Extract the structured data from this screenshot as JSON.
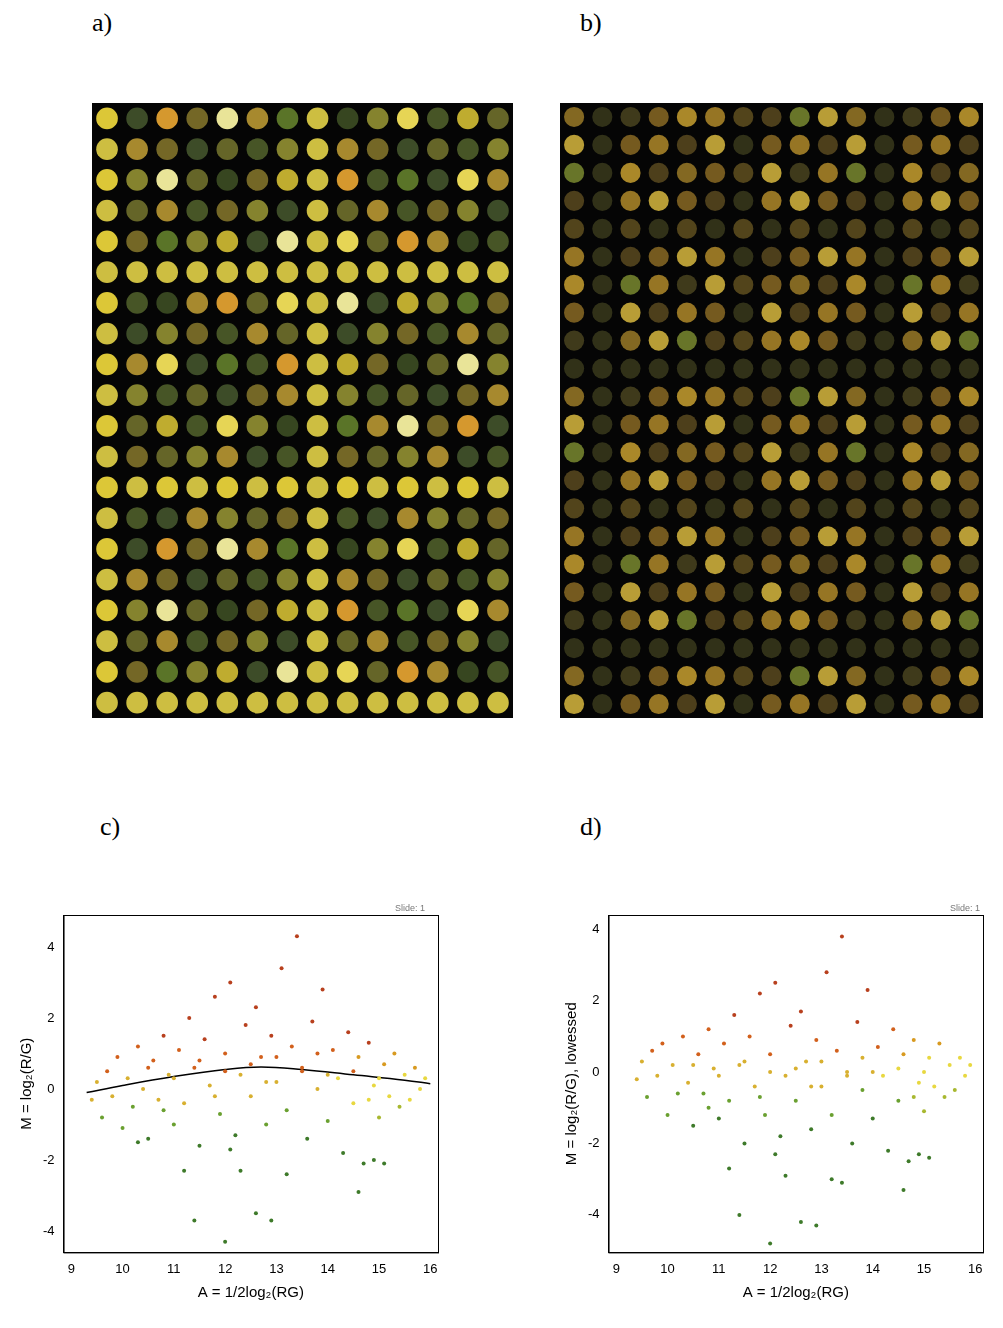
{
  "images": [
    {
      "label": "a)",
      "rows": 20,
      "cols": 14
    },
    {
      "label": "b)",
      "rows": 22,
      "cols": 15
    }
  ],
  "chart_data": [
    {
      "panel_label": "c)",
      "type": "scatter",
      "annotation": "Slide: 1",
      "x_label": "A = 1/2log₂(RG)",
      "y_label": "M = log₂(R/G)",
      "xlim": [
        8.85,
        16.15
      ],
      "xticks": [
        9,
        10,
        11,
        12,
        13,
        14,
        15,
        16
      ],
      "ylim": [
        -4.6,
        4.9
      ],
      "yticks": [
        -4,
        -2,
        0,
        2,
        4
      ],
      "grid": false,
      "points": {
        "x": [
          9.4,
          9.5,
          9.6,
          9.7,
          9.8,
          9.9,
          10,
          10.1,
          10.2,
          10.3,
          10.4,
          10.5,
          10.6,
          10.7,
          10.8,
          10.9,
          11,
          11.1,
          11.2,
          11.3,
          11.4,
          11.5,
          11.6,
          11.7,
          11.8,
          11.9,
          12,
          12.1,
          12.2,
          12.3,
          12.4,
          12.5,
          12.6,
          12.7,
          12.8,
          12.9,
          13,
          13.1,
          13.2,
          13.3,
          13.4,
          13.5,
          13.6,
          13.7,
          13.8,
          13.9,
          14,
          14.1,
          14.2,
          14.3,
          14.4,
          14.5,
          14.6,
          14.7,
          14.8,
          14.9,
          15,
          15.1,
          15.2,
          15.3,
          15.4,
          15.5,
          15.6,
          15.7,
          15.8,
          15.9,
          12,
          12.9,
          11.4,
          12.3,
          14.6,
          11.2,
          12.1,
          10.3,
          15.1,
          14.9,
          13.2,
          12.6,
          10.5,
          11,
          11.5,
          12,
          12.5,
          13,
          13.5,
          14,
          14.5,
          15,
          11.8,
          12.8,
          13.8,
          10.8,
          14.8
        ],
        "y": [
          -0.3,
          0.2,
          -0.8,
          0.5,
          -0.2,
          0.9,
          -1.1,
          0.3,
          -0.5,
          1.2,
          0,
          -1.4,
          0.8,
          -0.3,
          1.5,
          0.4,
          -1,
          1.1,
          -0.4,
          2,
          0.6,
          -1.6,
          1.4,
          0.1,
          2.6,
          -0.7,
          1,
          3,
          -1.3,
          0.4,
          1.8,
          -0.2,
          2.3,
          0.9,
          -1,
          1.5,
          0.2,
          3.4,
          -0.6,
          1.2,
          4.3,
          0.5,
          -1.4,
          1.9,
          0,
          2.8,
          -0.9,
          1.1,
          0.3,
          -1.8,
          1.6,
          -0.4,
          0.9,
          -2.1,
          1.3,
          0.1,
          -0.8,
          0.7,
          -0.2,
          1,
          -0.5,
          0.4,
          -0.3,
          0.6,
          0,
          0.3,
          -4.3,
          -3.7,
          -3.7,
          -2.3,
          -2.9,
          -2.3,
          -1.7,
          -1.5,
          -2.1,
          -2,
          -2.4,
          -3.5,
          0.6,
          0.3,
          0.8,
          0.5,
          0.7,
          0.9,
          0.6,
          0.4,
          0.5,
          0.3,
          -0.2,
          0.2,
          1,
          -0.6,
          -0.3
        ]
      },
      "lowess": {
        "x": [
          9.3,
          10,
          11,
          12,
          12.7,
          13.5,
          14.5,
          15.5,
          16
        ],
        "y": [
          -0.1,
          0.1,
          0.35,
          0.55,
          0.62,
          0.55,
          0.4,
          0.25,
          0.15
        ]
      }
    },
    {
      "panel_label": "d)",
      "type": "scatter",
      "annotation": "Slide: 1",
      "x_label": "A = 1/2log₂(RG)",
      "y_label": "M = log₂(R/G), lowessed",
      "xlim": [
        8.85,
        16.15
      ],
      "xticks": [
        9,
        10,
        11,
        12,
        13,
        14,
        15,
        16
      ],
      "ylim": [
        -5.05,
        4.4
      ],
      "yticks": [
        -4,
        -2,
        0,
        2,
        4
      ],
      "grid": false,
      "points": {
        "x": [
          9.4,
          9.5,
          9.6,
          9.7,
          9.8,
          9.9,
          10,
          10.1,
          10.2,
          10.3,
          10.4,
          10.5,
          10.6,
          10.7,
          10.8,
          10.9,
          11,
          11.1,
          11.2,
          11.3,
          11.4,
          11.5,
          11.6,
          11.7,
          11.8,
          11.9,
          12,
          12.1,
          12.2,
          12.3,
          12.4,
          12.5,
          12.6,
          12.7,
          12.8,
          12.9,
          13,
          13.1,
          13.2,
          13.3,
          13.4,
          13.5,
          13.6,
          13.7,
          13.8,
          13.9,
          14,
          14.1,
          14.2,
          14.3,
          14.4,
          14.5,
          14.6,
          14.7,
          14.8,
          14.9,
          15,
          15.1,
          15.2,
          15.3,
          15.4,
          15.5,
          15.6,
          15.7,
          15.8,
          15.9,
          12,
          12.9,
          11.4,
          12.3,
          14.6,
          11.2,
          12.1,
          13.4,
          15.1,
          14.9,
          13.2,
          12.6,
          10.5,
          11,
          11.5,
          12,
          12.5,
          13,
          13.5,
          14,
          14.5,
          15,
          11.8,
          12.8,
          13.8,
          10.8,
          14.8
        ],
        "y": [
          -0.2,
          0.3,
          -0.7,
          0.6,
          -0.1,
          0.8,
          -1.2,
          0.2,
          -0.6,
          1,
          -0.3,
          -1.5,
          0.5,
          -0.6,
          1.2,
          0.1,
          -1.3,
          0.8,
          -0.8,
          1.6,
          0.2,
          -2,
          1,
          -0.4,
          2.2,
          -1.2,
          0.5,
          2.5,
          -1.8,
          -0.1,
          1.3,
          -0.8,
          1.7,
          0.3,
          -1.6,
          0.9,
          -0.4,
          2.8,
          -1.2,
          0.6,
          3.8,
          -0.1,
          -2,
          1.4,
          -0.5,
          2.3,
          -1.3,
          0.7,
          -0.1,
          -2.2,
          1.2,
          -0.8,
          0.5,
          -2.5,
          0.9,
          -0.3,
          -1.1,
          0.4,
          -0.4,
          0.8,
          -0.7,
          0.2,
          -0.5,
          0.4,
          -0.1,
          0.2,
          -4.8,
          -4.3,
          -4,
          -2.9,
          -3.3,
          -2.7,
          -2.3,
          -3.1,
          -2.4,
          -2.3,
          -3,
          -4.2,
          0.2,
          -0.1,
          0.3,
          0,
          0.1,
          0.3,
          0,
          0,
          0.1,
          0,
          -0.7,
          -0.4,
          0.4,
          -1,
          -0.7
        ]
      }
    }
  ]
}
